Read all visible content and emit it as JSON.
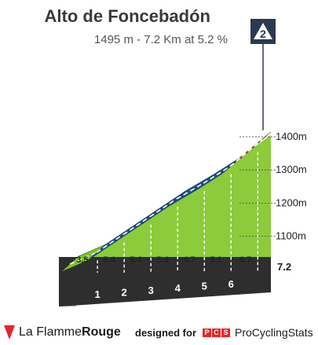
{
  "header": {
    "title": "Alto de Foncebadón",
    "subtitle": "1495 m - 7.2 Km at 5.2 %"
  },
  "category_badge": "2",
  "chart_data": {
    "type": "area",
    "title": "Alto de Foncebadón",
    "xlabel": "",
    "ylabel": "",
    "x_unit": "km",
    "y_unit": "m",
    "xlim": [
      0,
      7.2
    ],
    "ylim": [
      1030,
      1495
    ],
    "distance_end_label": "7.2",
    "km_markers": [
      "1",
      "2",
      "3",
      "4",
      "5",
      "6"
    ],
    "segments": [
      {
        "km_start": 0,
        "km_end": 1,
        "gradient": "3.5",
        "color": "#7cc42b"
      },
      {
        "km_start": 1,
        "km_end": 2,
        "gradient": "5.4",
        "color": "#1f4f8f"
      },
      {
        "km_start": 2,
        "km_end": 3,
        "gradient": "5.4",
        "color": "#1f4f8f"
      },
      {
        "km_start": 3,
        "km_end": 4,
        "gradient": "5.4",
        "color": "#1f4f8f"
      },
      {
        "km_start": 4,
        "km_end": 5,
        "gradient": "4.7",
        "color": "#1f4f8f"
      },
      {
        "km_start": 5,
        "km_end": 6,
        "gradient": "5.1",
        "color": "#1f4f8f"
      },
      {
        "km_start": 6,
        "km_end": 7.2,
        "gradient": "6.7",
        "color": "#e8232a"
      }
    ],
    "elevation_ticks": [
      {
        "value": 1100,
        "label": "1100m"
      },
      {
        "value": 1200,
        "label": "1200m"
      },
      {
        "value": 1300,
        "label": "1300m"
      },
      {
        "value": 1400,
        "label": "1400m"
      }
    ]
  },
  "footer": {
    "brand_left_1": "La Flamme",
    "brand_left_2": "Rouge",
    "designed_for": "designed for",
    "pcs_letters": [
      "P",
      "C",
      "S"
    ],
    "pcs_name": "ProCyclingStats"
  },
  "colors": {
    "slope_green": "#8ccb3c",
    "road_blue": "#1f4f8f",
    "road_green": "#7cc42b",
    "road_red": "#e8232a",
    "base_dark": "#2e2e2e",
    "stone_gray": "#b2aa9c",
    "badge_navy": "#2b3a4f"
  }
}
